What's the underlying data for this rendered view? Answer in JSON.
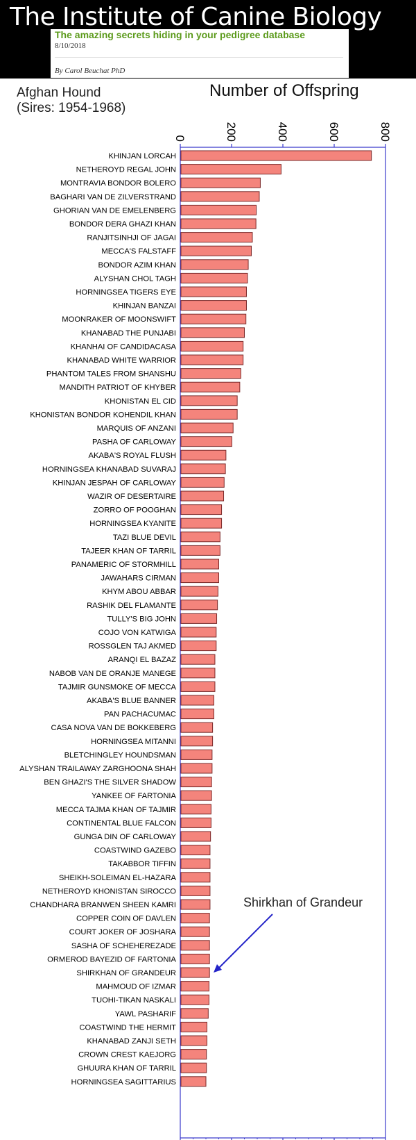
{
  "header": {
    "site_title": "The Institute of Canine Biology",
    "post_title": "The amazing secrets hiding in your pedigree database",
    "post_date": "8/10/2018",
    "author": "By Carol Beuchat PhD"
  },
  "colors": {
    "bar_fill": "#f4847c",
    "bar_stroke": "#7a2a2a",
    "axis": "#3a3acc",
    "arrow": "#2323c8",
    "header_bg": "#000000",
    "post_title": "#5b9a1b"
  },
  "chart_data": {
    "type": "bar",
    "orientation": "horizontal",
    "subtitle_lines": [
      "Afghan Hound",
      "(Sires: 1954-1968)"
    ],
    "title": "Number of Offspring",
    "xlim": [
      0,
      800
    ],
    "ticks": [
      0,
      200,
      400,
      600,
      800
    ],
    "tick_labels": [
      "0",
      "200",
      "400",
      "600",
      "800"
    ],
    "categories": [
      "KHINJAN LORCAH",
      "NETHEROYD REGAL JOHN",
      "MONTRAVIA BONDOR BOLERO",
      "BAGHARI VAN DE ZILVERSTRAND",
      "GHORIAN VAN DE EMELENBERG",
      "BONDOR DERA GHAZI KHAN",
      "RANJITSINHJI OF JAGAI",
      "MECCA'S FALSTAFF",
      "BONDOR AZIM KHAN",
      "ALYSHAN CHOL TAGH",
      "HORNINGSEA TIGERS EYE",
      "KHINJAN BANZAI",
      "MOONRAKER OF MOONSWIFT",
      "KHANABAD THE PUNJABI",
      "KHANHAI OF CANDIDACASA",
      "KHANABAD WHITE WARRIOR",
      "PHANTOM TALES FROM SHANSHU",
      "MANDITH PATRIOT OF KHYBER",
      "KHONISTAN EL CID",
      "KHONISTAN BONDOR KOHENDIL KHAN",
      "MARQUIS OF ANZANI",
      "PASHA OF CARLOWAY",
      "AKABA'S ROYAL FLUSH",
      "HORNINGSEA KHANABAD SUVARAJ",
      "KHINJAN JESPAH OF CARLOWAY",
      "WAZIR OF DESERTAIRE",
      "ZORRO OF POOGHAN",
      "HORNINGSEA KYANITE",
      "TAZI BLUE DEVIL",
      "TAJEER KHAN OF TARRIL",
      "PANAMERIC OF STORMHILL",
      "JAWAHARS CIRMAN",
      "KHYM ABOU ABBAR",
      "RASHIK DEL FLAMANTE",
      "TULLY'S BIG JOHN",
      "COJO VON KATWIGA",
      "ROSSGLEN TAJ AKMED",
      "ARANQI EL BAZAZ",
      "NABOB VAN DE ORANJE MANEGE",
      "TAJMIR GUNSMOKE OF MECCA",
      "AKABA'S BLUE BANNER",
      "PAN PACHACUMAC",
      "CASA NOVA VAN DE BOKKEBERG",
      "HORNINGSEA MITANNI",
      "BLETCHINGLEY HOUNDSMAN",
      "ALYSHAN TRAILAWAY ZARGHOONA SHAH",
      "BEN GHAZI'S THE SILVER SHADOW",
      "YANKEE OF FARTONIA",
      "MECCA TAJMA KHAN OF TAJMIR",
      "CONTINENTAL BLUE FALCON",
      "GUNGA DIN OF CARLOWAY",
      "COASTWIND GAZEBO",
      "TAKABBOR TIFFIN",
      "SHEIKH-SOLEIMAN EL-HAZARA",
      "NETHEROYD KHONISTAN SIROCCO",
      "CHANDHARA BRANWEN SHEEN KAMRI",
      "COPPER COIN OF DAVLEN",
      "COURT JOKER OF JOSHARA",
      "SASHA OF SCHEHEREZADE",
      "ORMEROD BAYEZID OF FARTONIA",
      "SHIRKHAN OF GRANDEUR",
      "MAHMOUD OF IZMAR",
      "TUOHI-TIKAN NASKALI",
      "YAWL PASHARIF",
      "COASTWIND THE HERMIT",
      "KHANABAD ZANJI SETH",
      "CROWN CREST KAEJORG",
      "GHUURA KHAN OF TARRIL",
      "HORNINGSEA SAGITTARIUS"
    ],
    "values": [
      745,
      393,
      312,
      308,
      296,
      295,
      281,
      277,
      265,
      262,
      258,
      258,
      256,
      250,
      245,
      245,
      236,
      232,
      222,
      222,
      206,
      201,
      178,
      176,
      171,
      169,
      161,
      161,
      155,
      155,
      150,
      150,
      147,
      145,
      142,
      140,
      140,
      135,
      135,
      135,
      131,
      131,
      126,
      126,
      124,
      124,
      122,
      122,
      120,
      120,
      118,
      116,
      116,
      116,
      116,
      116,
      114,
      114,
      114,
      114,
      114,
      112,
      112,
      109,
      104,
      104,
      102,
      102,
      100
    ],
    "annotation": {
      "text": "Shirkhan of Grandeur",
      "target": "SHIRKHAN OF GRANDEUR"
    },
    "grid": false
  }
}
